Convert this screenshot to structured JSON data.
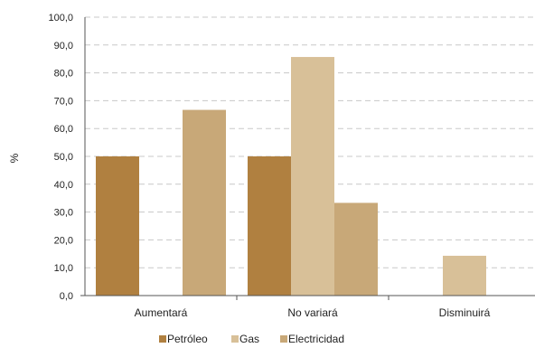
{
  "chart_data": {
    "type": "bar",
    "ylabel": "%",
    "xlabel": "",
    "categories": [
      "Aumentará",
      "No variará",
      "Disminuirá"
    ],
    "ylim": [
      0,
      100
    ],
    "ytick_step": 10,
    "ytick_labels": [
      "0,0",
      "10,0",
      "20,0",
      "30,0",
      "40,0",
      "50,0",
      "60,0",
      "70,0",
      "80,0",
      "90,0",
      "100,0"
    ],
    "grid": true,
    "legend_placement": "bottom",
    "series": [
      {
        "name": "Petróleo",
        "color": "#b08040",
        "values": [
          50.0,
          50.0,
          0.0
        ]
      },
      {
        "name": "Gas",
        "color": "#d8c098",
        "values": [
          0.0,
          85.7,
          14.3
        ]
      },
      {
        "name": "Electricidad",
        "color": "#c8a878",
        "values": [
          66.7,
          33.3,
          0.0
        ]
      }
    ]
  }
}
